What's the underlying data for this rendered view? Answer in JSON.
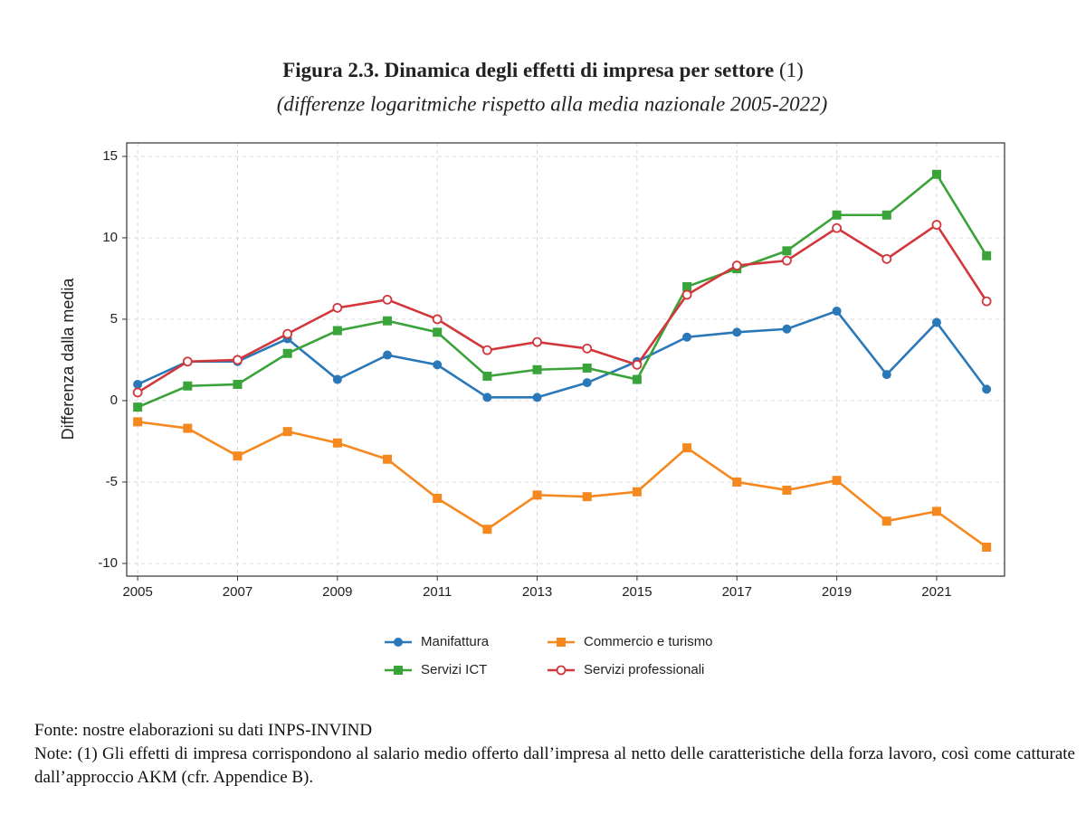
{
  "chart_data": {
    "type": "line",
    "title": "Figura 2.3. Dinamica degli effetti di impresa per settore",
    "title_note": "(1)",
    "subtitle": "(differenze logaritmiche rispetto alla media nazionale 2005-2022)",
    "y_label": "Differenza dalla media",
    "x": [
      2005,
      2006,
      2007,
      2008,
      2009,
      2010,
      2011,
      2012,
      2013,
      2014,
      2015,
      2016,
      2017,
      2018,
      2019,
      2020,
      2021,
      2022
    ],
    "series": [
      {
        "name": "Manifattura",
        "color": "#2a78b8",
        "marker": "circle",
        "values": [
          1.0,
          2.4,
          2.4,
          3.8,
          1.3,
          2.8,
          2.2,
          0.2,
          0.2,
          1.1,
          2.4,
          3.9,
          4.2,
          4.4,
          5.5,
          1.6,
          4.8,
          0.7
        ]
      },
      {
        "name": "Commercio e turismo",
        "color": "#f5891f",
        "marker": "square",
        "values": [
          -1.3,
          -1.7,
          -3.4,
          -1.9,
          -2.6,
          -3.6,
          -6.0,
          -7.9,
          -5.8,
          -5.9,
          -5.6,
          -2.9,
          -5.0,
          -5.5,
          -4.9,
          -7.4,
          -6.8,
          -9.0
        ]
      },
      {
        "name": "Servizi ICT",
        "color": "#3aa33a",
        "marker": "square",
        "values": [
          -0.4,
          0.9,
          1.0,
          2.9,
          4.3,
          4.9,
          4.2,
          1.5,
          1.9,
          2.0,
          1.3,
          7.0,
          8.1,
          9.2,
          11.4,
          11.4,
          13.9,
          8.9
        ]
      },
      {
        "name": "Servizi professionali",
        "color": "#d2373c",
        "marker": "open-circle",
        "values": [
          0.5,
          2.4,
          2.5,
          4.1,
          5.7,
          6.2,
          5.0,
          3.1,
          3.6,
          3.2,
          2.2,
          6.5,
          8.3,
          8.6,
          10.6,
          8.7,
          10.8,
          6.1
        ]
      }
    ],
    "xlim": [
      2004.78,
      2022.36
    ],
    "ylim": [
      -10.78,
      15.83
    ],
    "xticks": [
      2005,
      2007,
      2009,
      2011,
      2013,
      2015,
      2017,
      2019,
      2021
    ],
    "yticks": [
      -10,
      -5,
      0,
      5,
      10,
      15
    ],
    "grid": true,
    "legend": "bottom",
    "source": "Fonte: nostre elaborazioni su dati INPS-INVIND",
    "notes": "Note: (1) Gli effetti di impresa corrispondono al salario medio offerto dall’impresa al netto delle caratteristiche della forza lavoro, così come catturate dall’approccio AKM (cfr. Appendice B)."
  }
}
